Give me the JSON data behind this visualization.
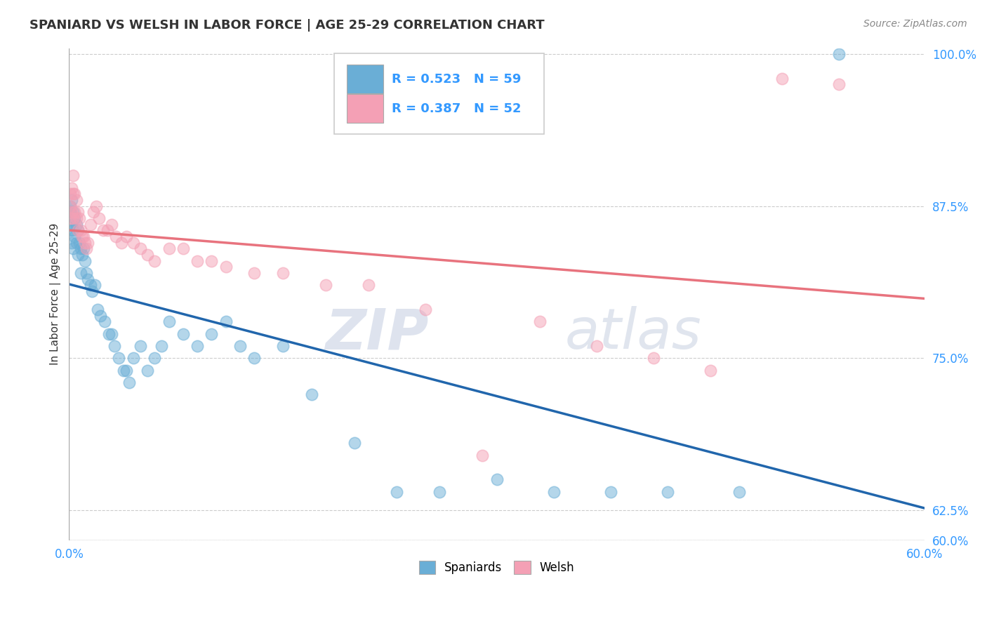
{
  "title": "SPANIARD VS WELSH IN LABOR FORCE | AGE 25-29 CORRELATION CHART",
  "source_text": "Source: ZipAtlas.com",
  "ylabel": "In Labor Force | Age 25-29",
  "xlim": [
    0.0,
    0.6
  ],
  "ylim": [
    0.6,
    1.005
  ],
  "ytick_labels": [
    "60.0%",
    "62.5%",
    "75.0%",
    "87.5%",
    "100.0%"
  ],
  "ytick_vals": [
    0.6,
    0.625,
    0.75,
    0.875,
    1.0
  ],
  "legend_r_spaniards": "R = 0.523",
  "legend_n_spaniards": "N = 59",
  "legend_r_welsh": "R = 0.387",
  "legend_n_welsh": "N = 52",
  "spaniards_color": "#6aaed6",
  "welsh_color": "#f4a0b5",
  "trendline_spaniards_color": "#2166ac",
  "trendline_welsh_color": "#e8737e",
  "background_color": "#ffffff",
  "grid_color": "#cccccc",
  "spaniards_x": [
    0.001,
    0.001,
    0.001,
    0.002,
    0.002,
    0.002,
    0.003,
    0.003,
    0.003,
    0.004,
    0.004,
    0.005,
    0.005,
    0.006,
    0.006,
    0.007,
    0.008,
    0.008,
    0.009,
    0.01,
    0.011,
    0.012,
    0.013,
    0.015,
    0.016,
    0.018,
    0.02,
    0.022,
    0.025,
    0.028,
    0.03,
    0.032,
    0.035,
    0.038,
    0.04,
    0.042,
    0.045,
    0.05,
    0.055,
    0.06,
    0.065,
    0.07,
    0.08,
    0.09,
    0.1,
    0.11,
    0.12,
    0.13,
    0.15,
    0.17,
    0.2,
    0.23,
    0.26,
    0.3,
    0.34,
    0.38,
    0.42,
    0.47,
    0.54
  ],
  "spaniards_y": [
    0.875,
    0.87,
    0.855,
    0.88,
    0.86,
    0.845,
    0.87,
    0.855,
    0.84,
    0.865,
    0.85,
    0.86,
    0.845,
    0.855,
    0.835,
    0.845,
    0.84,
    0.82,
    0.835,
    0.84,
    0.83,
    0.82,
    0.815,
    0.81,
    0.805,
    0.81,
    0.79,
    0.785,
    0.78,
    0.77,
    0.77,
    0.76,
    0.75,
    0.74,
    0.74,
    0.73,
    0.75,
    0.76,
    0.74,
    0.75,
    0.76,
    0.78,
    0.77,
    0.76,
    0.77,
    0.78,
    0.76,
    0.75,
    0.76,
    0.72,
    0.68,
    0.64,
    0.64,
    0.65,
    0.64,
    0.64,
    0.64,
    0.64,
    1.0
  ],
  "welsh_x": [
    0.001,
    0.001,
    0.001,
    0.002,
    0.002,
    0.003,
    0.003,
    0.003,
    0.004,
    0.004,
    0.005,
    0.005,
    0.006,
    0.006,
    0.007,
    0.008,
    0.009,
    0.01,
    0.011,
    0.012,
    0.013,
    0.015,
    0.017,
    0.019,
    0.021,
    0.024,
    0.027,
    0.03,
    0.033,
    0.037,
    0.04,
    0.045,
    0.05,
    0.055,
    0.06,
    0.07,
    0.08,
    0.09,
    0.1,
    0.11,
    0.13,
    0.15,
    0.18,
    0.21,
    0.25,
    0.29,
    0.33,
    0.37,
    0.41,
    0.45,
    0.5,
    0.54
  ],
  "welsh_y": [
    0.885,
    0.875,
    0.865,
    0.89,
    0.87,
    0.9,
    0.885,
    0.865,
    0.885,
    0.87,
    0.88,
    0.865,
    0.87,
    0.855,
    0.865,
    0.855,
    0.85,
    0.85,
    0.845,
    0.84,
    0.845,
    0.86,
    0.87,
    0.875,
    0.865,
    0.855,
    0.855,
    0.86,
    0.85,
    0.845,
    0.85,
    0.845,
    0.84,
    0.835,
    0.83,
    0.84,
    0.84,
    0.83,
    0.83,
    0.825,
    0.82,
    0.82,
    0.81,
    0.81,
    0.79,
    0.67,
    0.78,
    0.76,
    0.75,
    0.74,
    0.98,
    0.975
  ]
}
